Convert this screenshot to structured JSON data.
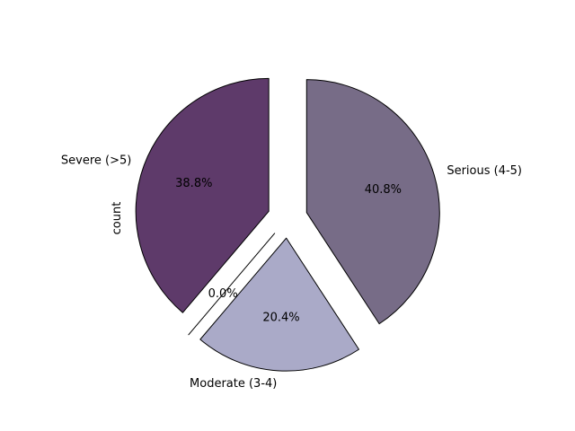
{
  "chart_data": {
    "type": "pie",
    "ylabel": "count",
    "slices": [
      {
        "label": "Severe (>5)",
        "pct_label": "38.8%",
        "value": 38.8,
        "color": "#5e3a6a"
      },
      {
        "label": "",
        "pct_label": "0.0%",
        "value": 0.0,
        "color": "#4a3a5a"
      },
      {
        "label": "Moderate (3-4)",
        "pct_label": "20.4%",
        "value": 20.4,
        "color": "#aaaac8"
      },
      {
        "label": "Serious (4-5)",
        "pct_label": "40.8%",
        "value": 40.8,
        "color": "#776c87"
      }
    ]
  }
}
